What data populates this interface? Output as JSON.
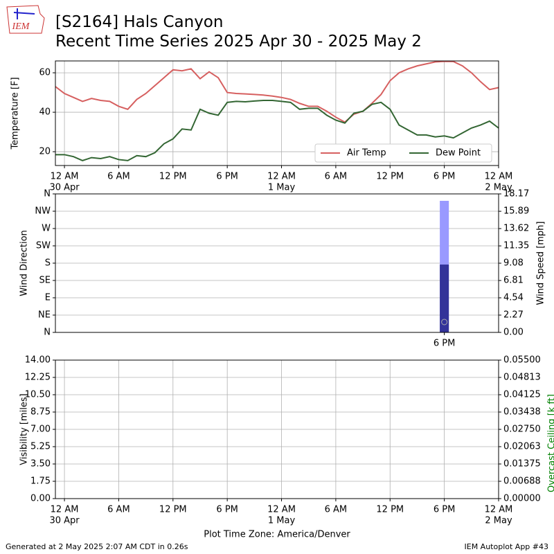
{
  "header": {
    "logo_text": "IEM",
    "title": "[S2164] Hals Canyon",
    "subtitle": "Recent Time Series 2025 Apr 30 - 2025 May 2"
  },
  "footer": {
    "left": "Generated at 2 May 2025 2:07 AM CDT in 0.26s",
    "right": "IEM Autoplot App #43"
  },
  "chart_data": [
    {
      "type": "line",
      "ylabel": "Temperature [F]",
      "xlim": [
        -1,
        48
      ],
      "xticks": [
        {
          "value": 0,
          "label": "12 AM"
        },
        {
          "value": 6,
          "label": "6 AM"
        },
        {
          "value": 12,
          "label": "12 PM"
        },
        {
          "value": 18,
          "label": "6 PM"
        },
        {
          "value": 24,
          "label": "12 AM"
        },
        {
          "value": 30,
          "label": "6 AM"
        },
        {
          "value": 36,
          "label": "12 PM"
        },
        {
          "value": 42,
          "label": "6 PM"
        },
        {
          "value": 48,
          "label": "12 AM"
        }
      ],
      "date_labels": [
        {
          "value": 0,
          "label": "30 Apr"
        },
        {
          "value": 24,
          "label": "1 May"
        },
        {
          "value": 48,
          "label": "2 May"
        }
      ],
      "ylim": [
        13,
        66
      ],
      "yticks": [
        20,
        40,
        60
      ],
      "grid": "both",
      "legend": "lower right",
      "x": [
        -1,
        0,
        1,
        2,
        3,
        4,
        5,
        6,
        7,
        8,
        9,
        10,
        11,
        12,
        13,
        14,
        15,
        16,
        17,
        18,
        19,
        20,
        21,
        22,
        23,
        24,
        25,
        26,
        27,
        28,
        29,
        30,
        31,
        32,
        33,
        34,
        35,
        36,
        37,
        38,
        39,
        40,
        41,
        42,
        43,
        44,
        45,
        46,
        47,
        48
      ],
      "series": [
        {
          "name": "Air Temp",
          "color": "#d65f5f",
          "values": [
            53,
            49.5,
            47.5,
            45.5,
            47,
            46,
            45.5,
            43,
            41.5,
            46.5,
            49.5,
            53.5,
            57.5,
            61.5,
            61,
            62,
            57,
            60.5,
            57.5,
            50,
            49.5,
            49.3,
            49,
            48.7,
            48.2,
            47.5,
            46.5,
            44.5,
            43,
            43,
            40.5,
            37.5,
            35,
            39,
            40.5,
            44.5,
            49,
            56,
            60,
            62,
            63.5,
            64.5,
            65.5,
            65.8,
            65.7,
            63.5,
            60,
            55.5,
            51.5,
            52.5
          ]
        },
        {
          "name": "Dew Point",
          "color": "#336633",
          "values": [
            18.5,
            18.5,
            17.5,
            15.5,
            17,
            16.5,
            17.5,
            16,
            15.5,
            18,
            17.5,
            19.5,
            24,
            26.5,
            31.5,
            31,
            41.5,
            39.5,
            38.5,
            45,
            45.5,
            45.3,
            45.7,
            46,
            46,
            45.5,
            45,
            41.5,
            42,
            42,
            38.5,
            36,
            34.5,
            39.5,
            40.5,
            44,
            45,
            41.5,
            33.5,
            31,
            28.5,
            28.5,
            27.5,
            28,
            27,
            29.5,
            32,
            33.5,
            35.5,
            32
          ]
        }
      ]
    },
    {
      "type": "bar",
      "ylabel": "Wind Direction",
      "y2label": "Wind Speed [mph]",
      "xlim": [
        -1,
        48
      ],
      "xticks": [
        {
          "value": 42,
          "label": "6 PM"
        }
      ],
      "ylim": [
        0,
        360
      ],
      "yticks": [
        {
          "value": 0,
          "label": "N"
        },
        {
          "value": 45,
          "label": "NE"
        },
        {
          "value": 90,
          "label": "E"
        },
        {
          "value": 135,
          "label": "SE"
        },
        {
          "value": 180,
          "label": "S"
        },
        {
          "value": 225,
          "label": "SW"
        },
        {
          "value": 270,
          "label": "W"
        },
        {
          "value": 315,
          "label": "NW"
        },
        {
          "value": 360,
          "label": "N"
        }
      ],
      "y2lim": [
        0,
        18.17
      ],
      "y2ticks": [
        {
          "value": 0,
          "label": "0.00"
        },
        2.27,
        4.54,
        6.81,
        9.08,
        11.35,
        13.62,
        15.89,
        18.17
      ],
      "grid": "y",
      "x": [
        42
      ],
      "series": [
        {
          "color": "#9999ff",
          "axis": "y2",
          "values": [
            17.26
          ]
        },
        {
          "color": "#333399",
          "axis": "y2",
          "values": [
            8.9
          ]
        },
        {
          "color": "#aaaaaa",
          "marker": "circle",
          "values": [
            27
          ]
        }
      ]
    },
    {
      "type": "line",
      "ylabel": "Visibility [miles]",
      "y2label": "Overcast Ceiling [k ft]",
      "y2label_color": "green",
      "xlabel": "Plot Time Zone: America/Denver",
      "xlim": [
        -1,
        48
      ],
      "xticks": [
        {
          "value": 0,
          "label": "12 AM"
        },
        {
          "value": 6,
          "label": "6 AM"
        },
        {
          "value": 12,
          "label": "12 PM"
        },
        {
          "value": 18,
          "label": "6 PM"
        },
        {
          "value": 24,
          "label": "12 AM"
        },
        {
          "value": 30,
          "label": "6 AM"
        },
        {
          "value": 36,
          "label": "12 PM"
        },
        {
          "value": 42,
          "label": "6 PM"
        },
        {
          "value": 48,
          "label": "12 AM"
        }
      ],
      "date_labels": [
        {
          "value": 0,
          "label": "30 Apr"
        },
        {
          "value": 24,
          "label": "1 May"
        },
        {
          "value": 48,
          "label": "2 May"
        }
      ],
      "ylim": [
        0,
        14
      ],
      "yticks": [
        {
          "value": 0,
          "label": "0.00"
        },
        1.75,
        {
          "value": 3.5,
          "label": "3.50"
        },
        5.25,
        {
          "value": 7,
          "label": "7.00"
        },
        8.75,
        {
          "value": 10.5,
          "label": "10.50"
        },
        12.25,
        {
          "value": 14,
          "label": "14.00"
        }
      ],
      "y2lim": [
        0,
        0.055
      ],
      "y2ticks": [
        {
          "value": 0,
          "label": "0.00000"
        },
        {
          "value": 0.006875,
          "label": "0.00688"
        },
        {
          "value": 0.01375,
          "label": "0.01375"
        },
        {
          "value": 0.020625,
          "label": "0.02063"
        },
        {
          "value": 0.0275,
          "label": "0.02750"
        },
        {
          "value": 0.034375,
          "label": "0.03438"
        },
        {
          "value": 0.04125,
          "label": "0.04125"
        },
        {
          "value": 0.048125,
          "label": "0.04813"
        },
        {
          "value": 0.055,
          "label": "0.05500"
        }
      ],
      "grid": "both",
      "series": []
    }
  ]
}
